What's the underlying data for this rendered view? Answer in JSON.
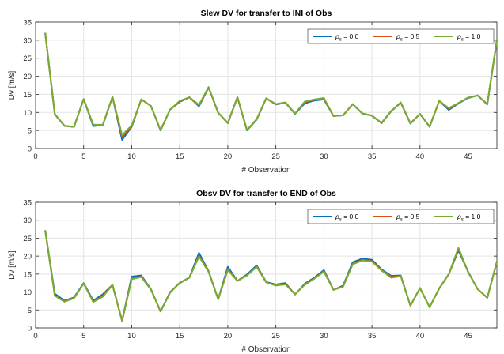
{
  "chart_data": [
    {
      "type": "line",
      "title": "Slew DV for transfer to INI of Obs",
      "xlabel": "# Observation",
      "ylabel": "Dv [m/s]",
      "xlim": [
        0,
        48
      ],
      "ylim": [
        0,
        35
      ],
      "xticks": [
        0,
        5,
        10,
        15,
        20,
        25,
        30,
        35,
        40,
        45
      ],
      "yticks": [
        0,
        5,
        10,
        15,
        20,
        25,
        30,
        35
      ],
      "grid": true,
      "legend_position": "top-right",
      "x": [
        1,
        2,
        3,
        4,
        5,
        6,
        7,
        8,
        9,
        10,
        11,
        12,
        13,
        14,
        15,
        16,
        17,
        18,
        19,
        20,
        21,
        22,
        23,
        24,
        25,
        26,
        27,
        28,
        29,
        30,
        31,
        32,
        33,
        34,
        35,
        36,
        37,
        38,
        39,
        40,
        41,
        42,
        43,
        44,
        45,
        46,
        47,
        48
      ],
      "series": [
        {
          "name_prefix": "ρ",
          "name_sub": "s",
          "name_suffix": " = 0.0",
          "color": "#0072BD",
          "values": [
            32,
            9.5,
            6.3,
            6,
            13.7,
            6.2,
            6.5,
            14.3,
            2.4,
            6,
            13.6,
            11.8,
            5,
            10.8,
            12.9,
            14.2,
            11.7,
            16.9,
            9.9,
            7,
            14.2,
            5,
            8,
            13.9,
            12.2,
            12.7,
            9.6,
            12.5,
            13.3,
            13.6,
            9,
            9.2,
            12.3,
            9.7,
            9.1,
            7,
            10.3,
            12.7,
            6.9,
            9.6,
            6,
            13.2,
            10.7,
            12.5,
            14,
            14.7,
            12.2,
            30
          ]
        },
        {
          "name_prefix": "ρ",
          "name_sub": "s",
          "name_suffix": " = 0.5",
          "color": "#D95319",
          "values": [
            32,
            9.5,
            6.3,
            6,
            13.7,
            6.5,
            6.6,
            14.3,
            3.2,
            6.2,
            13.6,
            11.8,
            5.1,
            10.8,
            13,
            14.2,
            11.9,
            17,
            9.9,
            7.1,
            14.2,
            5.1,
            8.1,
            13.9,
            12.3,
            12.7,
            9.7,
            12.8,
            13.5,
            13.8,
            9,
            9.2,
            12.3,
            9.7,
            9.1,
            7.1,
            10.4,
            12.7,
            7,
            9.6,
            6.1,
            13.2,
            11,
            12.6,
            14.1,
            14.7,
            12.3,
            30
          ]
        },
        {
          "name_prefix": "ρ",
          "name_sub": "s",
          "name_suffix": " = 1.0",
          "color": "#77AC30",
          "values": [
            32,
            9.5,
            6.3,
            6,
            13.7,
            6.6,
            6.6,
            14.3,
            3.7,
            6.4,
            13.6,
            11.8,
            5.1,
            10.8,
            13.2,
            14.2,
            12.1,
            17,
            9.9,
            7.1,
            14.2,
            5.1,
            8.1,
            13.9,
            12.3,
            12.8,
            9.7,
            13,
            13.6,
            14,
            9,
            9.2,
            12.3,
            9.7,
            9.1,
            7.1,
            10.4,
            12.8,
            7,
            9.6,
            6.1,
            13.2,
            11.2,
            12.6,
            14.1,
            14.7,
            12.3,
            30
          ]
        }
      ]
    },
    {
      "type": "line",
      "title": "Obsv DV for transfer to END of Obs",
      "xlabel": "# Observation",
      "ylabel": "Dv [m/s]",
      "xlim": [
        0,
        48
      ],
      "ylim": [
        0,
        35
      ],
      "xticks": [
        0,
        5,
        10,
        15,
        20,
        25,
        30,
        35,
        40,
        45
      ],
      "yticks": [
        0,
        5,
        10,
        15,
        20,
        25,
        30,
        35
      ],
      "grid": true,
      "legend_position": "top-right",
      "x": [
        1,
        2,
        3,
        4,
        5,
        6,
        7,
        8,
        9,
        10,
        11,
        12,
        13,
        14,
        15,
        16,
        17,
        18,
        19,
        20,
        21,
        22,
        23,
        24,
        25,
        26,
        27,
        28,
        29,
        30,
        31,
        32,
        33,
        34,
        35,
        36,
        37,
        38,
        39,
        40,
        41,
        42,
        43,
        44,
        45,
        46,
        47,
        48
      ],
      "series": [
        {
          "name_prefix": "ρ",
          "name_sub": "s",
          "name_suffix": " = 0.0",
          "color": "#0072BD",
          "values": [
            27.2,
            9.5,
            7.6,
            8.5,
            12.5,
            7.6,
            9.4,
            12,
            2,
            14.3,
            14.6,
            10.8,
            4.6,
            10,
            12.5,
            14,
            20.9,
            15.8,
            8,
            17,
            13.1,
            14.9,
            17.4,
            12.8,
            12.1,
            12.5,
            9.3,
            12.3,
            14,
            16.1,
            10.6,
            11.8,
            18.3,
            19.3,
            19,
            16.3,
            14.5,
            14.6,
            6.2,
            11.1,
            5.8,
            11,
            15,
            21.6,
            15.7,
            10.8,
            8.4,
            18.5
          ]
        },
        {
          "name_prefix": "ρ",
          "name_sub": "s",
          "name_suffix": " = 0.5",
          "color": "#D95319",
          "values": [
            27.2,
            9,
            7.4,
            8.3,
            12.4,
            7.3,
            9,
            12,
            1.9,
            13.8,
            14.3,
            10.7,
            4.6,
            9.9,
            12.6,
            14,
            20.1,
            15.7,
            8,
            16.4,
            13.1,
            14.7,
            17.1,
            12.7,
            11.9,
            12.2,
            9.4,
            12.1,
            13.8,
            15.8,
            10.6,
            11.6,
            17.9,
            19,
            18.6,
            16.1,
            14.2,
            14.5,
            6.2,
            11.1,
            5.8,
            11,
            15,
            22.1,
            15.6,
            10.8,
            8.4,
            18.4
          ]
        },
        {
          "name_prefix": "ρ",
          "name_sub": "s",
          "name_suffix": " = 1.0",
          "color": "#77AC30",
          "values": [
            27.2,
            9,
            7.3,
            8.3,
            12.4,
            7.2,
            8.7,
            12,
            1.9,
            13.6,
            14.2,
            10.7,
            4.6,
            9.8,
            12.6,
            14,
            19.9,
            15.6,
            8,
            16.1,
            13.1,
            14.6,
            17,
            12.7,
            11.8,
            12.1,
            9.4,
            12,
            13.7,
            15.7,
            10.6,
            11.5,
            17.7,
            18.8,
            18.5,
            16,
            14,
            14.4,
            6.2,
            11.1,
            5.8,
            11,
            15,
            22.3,
            15.6,
            10.8,
            8.4,
            18.4
          ]
        }
      ]
    }
  ]
}
